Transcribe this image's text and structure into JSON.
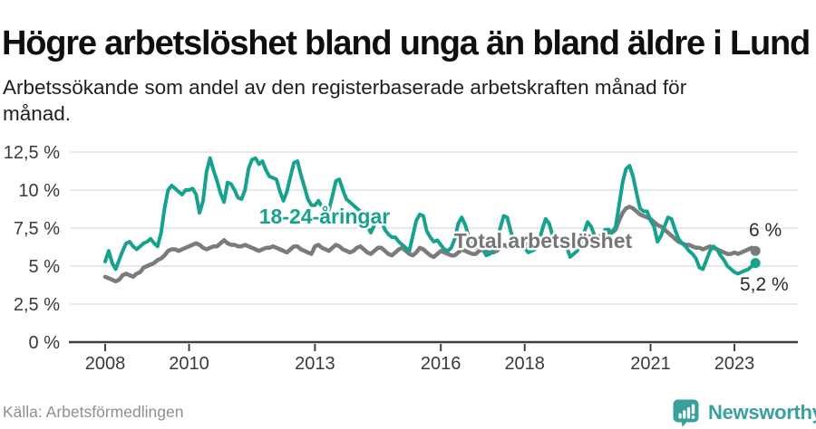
{
  "header": {
    "title": "Högre arbetslöshet bland unga än bland äldre i Lund",
    "subtitle": "Arbetssökande som andel av den registerbaserade arbetskraften månad för månad."
  },
  "footer": {
    "source": "Källa: Arbetsförmedlingen",
    "brand": "Newsworthy"
  },
  "colors": {
    "youth": "#17a28f",
    "total": "#7b7b7b",
    "total_label": "#757575",
    "grid": "#d9d9d9",
    "axis": "#3f3f3f",
    "tick_text": "#3a3a3a",
    "annotation": "#2b2b2b",
    "brand_teal": "#3aa09c"
  },
  "chart_data": {
    "type": "line",
    "title": "Högre arbetslöshet bland unga än bland äldre i Lund",
    "subtitle": "Arbetssökande som andel av den registerbaserade arbetskraften månad för månad.",
    "x_unit": "month",
    "x_start_year": 2008,
    "x_end_label_year": 2023.5,
    "ylim": [
      0,
      12.5
    ],
    "grid": true,
    "legend": "inline-labels",
    "yticks": [
      {
        "value": 0,
        "label": "0 %"
      },
      {
        "value": 2.5,
        "label": "2,5 %"
      },
      {
        "value": 5,
        "label": "5 %"
      },
      {
        "value": 7.5,
        "label": "7,5 %"
      },
      {
        "value": 10,
        "label": "10 %"
      },
      {
        "value": 12.5,
        "label": "12,5 %"
      }
    ],
    "xticks": [
      {
        "value": 2008,
        "label": "2008"
      },
      {
        "value": 2010,
        "label": "2010"
      },
      {
        "value": 2013,
        "label": "2013"
      },
      {
        "value": 2016,
        "label": "2016"
      },
      {
        "value": 2018,
        "label": "2018"
      },
      {
        "value": 2021,
        "label": "2021"
      },
      {
        "value": 2023,
        "label": "2023"
      }
    ],
    "series": [
      {
        "key": "total",
        "name": "Total arbetslöshet",
        "color": "#7b7b7b",
        "end_label": "6 %",
        "end_value": 6.0,
        "values": [
          4.3,
          4.2,
          4.1,
          4.0,
          4.1,
          4.4,
          4.5,
          4.4,
          4.3,
          4.5,
          4.6,
          4.9,
          5.0,
          5.1,
          5.2,
          5.4,
          5.5,
          5.7,
          6.0,
          6.1,
          6.1,
          6.0,
          6.1,
          6.2,
          6.3,
          6.4,
          6.5,
          6.4,
          6.2,
          6.1,
          6.2,
          6.3,
          6.3,
          6.5,
          6.7,
          6.5,
          6.4,
          6.4,
          6.3,
          6.3,
          6.4,
          6.3,
          6.2,
          6.1,
          6.0,
          6.1,
          6.2,
          6.2,
          6.3,
          6.2,
          6.1,
          6.0,
          5.9,
          6.1,
          6.3,
          6.3,
          6.1,
          6.0,
          5.9,
          5.8,
          6.3,
          6.4,
          6.2,
          6.1,
          6.0,
          6.2,
          6.4,
          6.3,
          6.1,
          6.0,
          5.9,
          6.0,
          6.2,
          6.3,
          6.1,
          5.9,
          5.8,
          6.0,
          6.2,
          6.2,
          6.0,
          5.8,
          5.7,
          5.9,
          6.1,
          6.2,
          6.0,
          5.8,
          5.7,
          5.9,
          6.2,
          6.1,
          5.9,
          5.7,
          5.6,
          5.8,
          6.0,
          5.9,
          5.8,
          5.7,
          5.7,
          5.9,
          6.1,
          6.0,
          5.9,
          5.8,
          5.8,
          6.0,
          6.1,
          6.0,
          5.9,
          5.9,
          6.0,
          6.2,
          6.4,
          6.3,
          6.2,
          6.2,
          6.3,
          6.4,
          6.5,
          6.4,
          6.3,
          6.2,
          6.3,
          6.5,
          6.7,
          6.6,
          6.5,
          6.5,
          6.6,
          6.7,
          6.8,
          6.7,
          6.6,
          6.6,
          6.7,
          6.8,
          7.0,
          6.9,
          6.8,
          6.9,
          7.0,
          7.1,
          7.2,
          7.2,
          7.4,
          8.0,
          8.5,
          8.8,
          8.9,
          8.8,
          8.6,
          8.4,
          8.3,
          8.2,
          8.1,
          7.9,
          7.7,
          7.6,
          7.4,
          7.2,
          7.0,
          6.8,
          6.6,
          6.5,
          6.4,
          6.4,
          6.3,
          6.2,
          6.2,
          6.1,
          6.2,
          6.3,
          6.2,
          6.1,
          6.0,
          5.9,
          5.8,
          5.8,
          5.9,
          5.8,
          5.9,
          6.0,
          6.1,
          6.2,
          6.0
        ]
      },
      {
        "key": "youth",
        "name": "18-24-åringar",
        "color": "#17a28f",
        "end_label": "5,2 %",
        "end_value": 5.2,
        "values": [
          5.3,
          6.0,
          5.2,
          4.8,
          5.4,
          6.0,
          6.5,
          6.6,
          6.3,
          6.1,
          6.3,
          6.5,
          6.6,
          6.8,
          6.5,
          6.3,
          7.2,
          8.8,
          10.0,
          10.3,
          10.1,
          9.9,
          9.7,
          10.0,
          10.0,
          10.1,
          9.7,
          8.5,
          9.3,
          11.2,
          12.1,
          11.3,
          10.6,
          9.8,
          9.2,
          10.5,
          10.4,
          10.0,
          9.5,
          9.4,
          10.0,
          11.4,
          12.0,
          12.1,
          11.7,
          11.9,
          11.3,
          10.9,
          10.8,
          10.7,
          9.9,
          9.3,
          9.9,
          10.9,
          11.8,
          11.9,
          11.0,
          10.2,
          9.4,
          9.0,
          9.0,
          9.3,
          8.9,
          8.4,
          8.7,
          9.6,
          10.6,
          10.7,
          10.0,
          9.4,
          9.2,
          9.0,
          8.8,
          8.6,
          8.2,
          7.6,
          7.2,
          7.7,
          8.3,
          8.1,
          7.4,
          7.1,
          6.9,
          6.9,
          6.6,
          6.4,
          6.2,
          6.0,
          7.0,
          8.0,
          8.4,
          8.3,
          7.3,
          6.9,
          6.6,
          6.7,
          6.4,
          6.1,
          6.0,
          6.2,
          6.8,
          7.8,
          8.2,
          7.7,
          6.9,
          6.4,
          6.2,
          6.5,
          6.1,
          5.7,
          5.8,
          6.0,
          6.4,
          7.5,
          8.3,
          8.2,
          7.3,
          6.6,
          6.3,
          6.6,
          6.2,
          5.9,
          6.0,
          6.1,
          6.5,
          7.4,
          8.1,
          7.8,
          7.0,
          6.5,
          6.3,
          6.7,
          6.3,
          5.6,
          5.8,
          6.0,
          6.4,
          7.2,
          7.9,
          7.6,
          7.0,
          6.8,
          7.0,
          7.4,
          7.4,
          7.2,
          7.6,
          9.0,
          10.5,
          11.4,
          11.6,
          10.9,
          9.8,
          8.8,
          8.6,
          8.6,
          8.0,
          7.6,
          6.6,
          7.0,
          7.6,
          8.2,
          8.1,
          7.4,
          6.8,
          6.5,
          6.3,
          6.0,
          5.8,
          5.5,
          4.9,
          4.8,
          5.4,
          6.0,
          6.3,
          6.1,
          5.7,
          5.4,
          5.0,
          4.8,
          4.6,
          4.5,
          4.6,
          4.7,
          4.8,
          5.0,
          5.2
        ]
      }
    ]
  }
}
